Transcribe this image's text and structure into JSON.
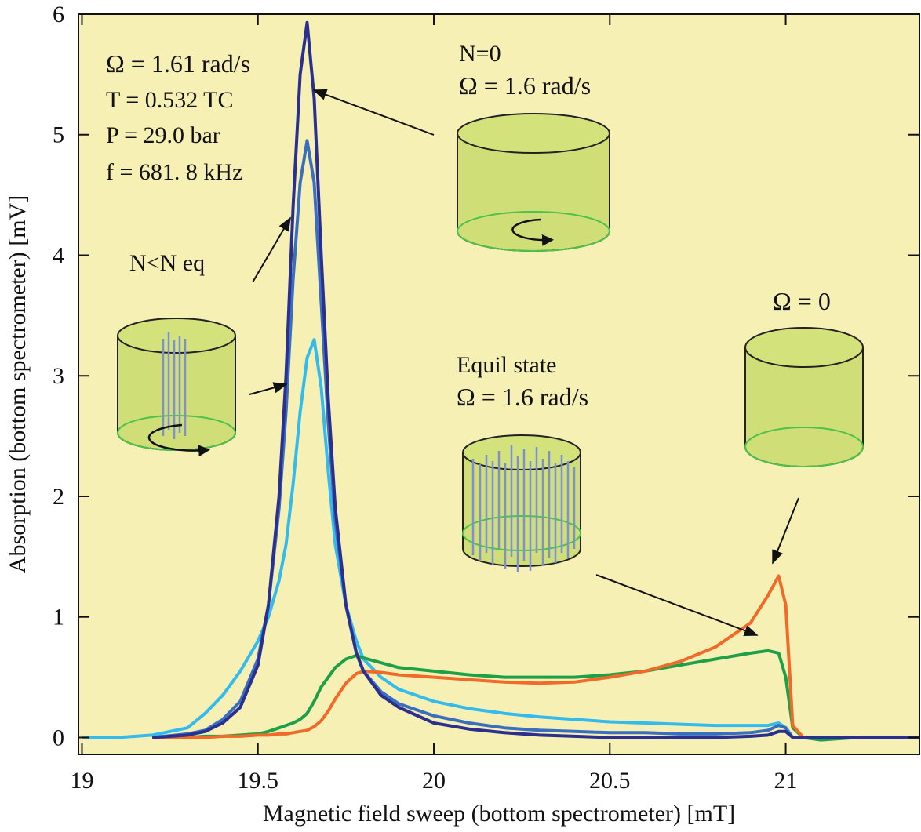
{
  "chart_data": {
    "type": "line",
    "xlabel": "Magnetic field sweep (bottom spectrometer)    [mT]",
    "ylabel": "Absorption (bottom spectrometer)  [mV]",
    "xlim": [
      18.99,
      21.38
    ],
    "ylim": [
      -0.14,
      6
    ],
    "xticks": [
      19,
      19.5,
      20,
      20.5,
      21
    ],
    "yticks": [
      0,
      1,
      2,
      3,
      4,
      5,
      6
    ],
    "background": "#f7f0b4",
    "x": [
      19.0,
      19.1,
      19.2,
      19.3,
      19.35,
      19.4,
      19.45,
      19.5,
      19.53,
      19.56,
      19.58,
      19.6,
      19.62,
      19.64,
      19.66,
      19.68,
      19.7,
      19.72,
      19.75,
      19.78,
      19.8,
      19.85,
      19.9,
      20.0,
      20.1,
      20.2,
      20.3,
      20.4,
      20.5,
      20.6,
      20.7,
      20.8,
      20.9,
      20.95,
      20.98,
      21.0,
      21.02,
      21.05,
      21.1,
      21.2,
      21.3,
      21.38
    ],
    "series": [
      {
        "color": "#33bbee",
        "values": [
          0,
          0,
          0.02,
          0.08,
          0.2,
          0.35,
          0.55,
          0.8,
          1.0,
          1.3,
          1.6,
          2.1,
          2.7,
          3.15,
          3.3,
          2.9,
          2.2,
          1.6,
          1.1,
          0.8,
          0.65,
          0.5,
          0.4,
          0.3,
          0.24,
          0.2,
          0.17,
          0.15,
          0.13,
          0.12,
          0.11,
          0.1,
          0.1,
          0.1,
          0.12,
          0.08,
          0,
          0,
          null,
          null,
          null,
          null
        ]
      },
      {
        "color": "#1ea049",
        "values": [
          null,
          null,
          0,
          0,
          0.01,
          0.01,
          0.02,
          0.03,
          0.05,
          0.08,
          0.1,
          0.12,
          0.15,
          0.2,
          0.3,
          0.42,
          0.5,
          0.58,
          0.65,
          0.68,
          0.66,
          0.62,
          0.58,
          0.55,
          0.52,
          0.5,
          0.5,
          0.5,
          0.52,
          0.55,
          0.6,
          0.65,
          0.7,
          0.72,
          0.7,
          0.5,
          0.08,
          0,
          -0.02,
          0,
          0,
          0
        ]
      },
      {
        "color": "#f06a2a",
        "values": [
          null,
          null,
          0,
          0,
          0,
          0.01,
          0.01,
          0.02,
          0.02,
          0.03,
          0.03,
          0.04,
          0.05,
          0.06,
          0.09,
          0.14,
          0.22,
          0.32,
          0.45,
          0.53,
          0.55,
          0.54,
          0.52,
          0.5,
          0.48,
          0.46,
          0.45,
          0.46,
          0.5,
          0.55,
          0.63,
          0.75,
          0.95,
          1.18,
          1.34,
          1.1,
          0.1,
          0,
          0,
          0,
          0,
          0
        ]
      },
      {
        "color": "#3a6fc0",
        "values": [
          null,
          null,
          0,
          0.03,
          0.06,
          0.15,
          0.3,
          0.65,
          1.1,
          1.9,
          2.7,
          3.8,
          4.6,
          4.95,
          4.6,
          3.6,
          2.6,
          1.8,
          1.1,
          0.7,
          0.55,
          0.38,
          0.28,
          0.18,
          0.12,
          0.08,
          0.06,
          0.05,
          0.04,
          0.04,
          0.03,
          0.03,
          0.04,
          0.06,
          0.1,
          0.08,
          0,
          0,
          0,
          0,
          0,
          0
        ]
      },
      {
        "color": "#2b2f8f",
        "values": [
          null,
          null,
          0,
          0.02,
          0.05,
          0.12,
          0.25,
          0.6,
          1.1,
          2.0,
          3.0,
          4.4,
          5.5,
          5.93,
          5.3,
          4.0,
          2.8,
          1.9,
          1.1,
          0.7,
          0.55,
          0.35,
          0.25,
          0.12,
          0.07,
          0.04,
          0.02,
          0.01,
          0,
          0,
          0,
          0,
          0.01,
          0.02,
          0.05,
          0.05,
          0,
          0,
          0,
          0,
          0,
          0
        ]
      }
    ],
    "annotations": [
      "Ω = 1.61 rad/s",
      "T = 0.532 TC",
      "P = 29.0 bar",
      "f = 681. 8 kHz",
      "N=0",
      "Ω = 1.6 rad/s",
      "N<N eq",
      "Equil state",
      "Ω = 1.6 rad/s",
      "Ω = 0"
    ]
  }
}
